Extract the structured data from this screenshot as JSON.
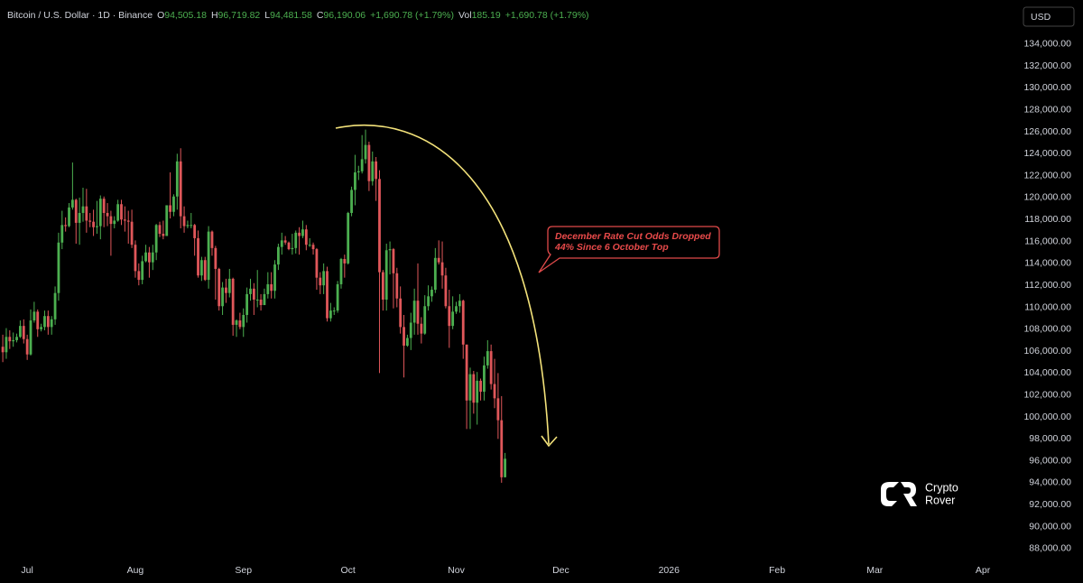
{
  "chart_data": {
    "type": "candlestick",
    "title": "Bitcoin / U.S. Dollar · 1D · Binance",
    "legend_items": [
      {
        "key": "O",
        "value": "94,505.18"
      },
      {
        "key": "H",
        "value": "96,719.82"
      },
      {
        "key": "L",
        "value": "94,481.58"
      },
      {
        "key": "C",
        "value": "96,190.06"
      }
    ],
    "change": "+1,690.78 (+1.79%)",
    "volume_key": "Vol",
    "volume": "185.19",
    "currency": "USD",
    "up_color": "#4caf50",
    "down_color": "#e0575a",
    "open": [
      106400,
      105900,
      107300,
      106900,
      107000,
      107300,
      108300,
      107100,
      105700,
      108800,
      109600,
      108000,
      108200,
      109200,
      108200,
      108900,
      111300,
      115900,
      117500,
      117400,
      119100,
      119800,
      117700,
      118600,
      119200,
      117900,
      117800,
      117300,
      117400,
      119900,
      118600,
      118300,
      117600,
      117900,
      119400,
      118000,
      117900,
      117800,
      115700,
      113300,
      112500,
      114200,
      115000,
      114100,
      115000,
      117500,
      116700,
      116500,
      119300,
      118700,
      120100,
      123300,
      118300,
      117400,
      117500,
      117500,
      116300,
      112900,
      114300,
      112500,
      116900,
      115400,
      113500,
      110100,
      111800,
      111300,
      112600,
      108400,
      108800,
      108200,
      109300,
      111200,
      111700,
      110700,
      110700,
      110200,
      111200,
      112100,
      111500,
      113900,
      115500,
      116100,
      115900,
      115300,
      115400,
      116800,
      116500,
      117100,
      115700,
      115700,
      115300,
      112700,
      112000,
      113300,
      109000,
      109700,
      109700,
      112100,
      114400,
      114000,
      118600,
      120700,
      122300,
      122400,
      123500,
      124800,
      121500,
      123300,
      121700,
      113200,
      110700,
      115200,
      115300,
      113100,
      110800,
      108200,
      106500,
      107200,
      108600,
      110600,
      108500,
      107600,
      110100,
      111000,
      111600,
      114500,
      114100,
      112900,
      110100,
      108300,
      109600,
      110100,
      110600,
      106600,
      101500,
      103900,
      101300,
      103300,
      102300,
      104700,
      106000,
      103000,
      101700,
      99700,
      94505.18
    ],
    "high": [
      107500,
      108100,
      107900,
      107700,
      107600,
      108800,
      108900,
      107500,
      109800,
      110500,
      109800,
      108500,
      109700,
      109700,
      109200,
      111900,
      116800,
      118800,
      118200,
      119500,
      123200,
      119900,
      120000,
      120900,
      120800,
      118600,
      118900,
      119700,
      120200,
      120100,
      119500,
      118800,
      118300,
      119800,
      119800,
      119200,
      118800,
      118900,
      116100,
      114000,
      114700,
      115700,
      115500,
      115700,
      117600,
      117800,
      117900,
      119300,
      122300,
      120300,
      124000,
      124500,
      119200,
      117900,
      118600,
      117600,
      117000,
      114600,
      114600,
      117400,
      117000,
      115600,
      113600,
      112300,
      112600,
      113500,
      112700,
      108900,
      109500,
      109900,
      111800,
      112600,
      112200,
      113400,
      111200,
      111700,
      113200,
      113200,
      114300,
      115800,
      116800,
      116500,
      116000,
      116700,
      117000,
      117300,
      117900,
      117500,
      116300,
      115900,
      115400,
      113200,
      114000,
      113700,
      110400,
      110000,
      112400,
      114500,
      114800,
      118700,
      121000,
      123900,
      122900,
      125700,
      126200,
      125100,
      124200,
      123700,
      122500,
      113400,
      115800,
      116000,
      115400,
      113600,
      111900,
      109300,
      107500,
      109500,
      111700,
      114000,
      109100,
      111100,
      112000,
      111900,
      115400,
      116100,
      116000,
      113600,
      111600,
      111000,
      110500,
      111200,
      110700,
      106600,
      104500,
      104200,
      104100,
      103500,
      105500,
      107000,
      106600,
      105300,
      104000,
      101900,
      96719.82
    ],
    "low": [
      105000,
      105300,
      106200,
      106400,
      106800,
      107200,
      106700,
      105200,
      105600,
      108600,
      107300,
      107800,
      107900,
      107500,
      107500,
      108400,
      110600,
      115300,
      116900,
      117300,
      118900,
      115800,
      115700,
      117800,
      116800,
      117300,
      116500,
      116700,
      116200,
      117300,
      117400,
      114700,
      117200,
      117800,
      117500,
      116900,
      115800,
      115400,
      112700,
      112000,
      112100,
      114100,
      112700,
      113400,
      114300,
      116400,
      116200,
      116500,
      118100,
      118300,
      118900,
      117200,
      116800,
      117200,
      117200,
      114700,
      112700,
      112400,
      112400,
      111700,
      114700,
      110700,
      109700,
      109300,
      110400,
      110900,
      107400,
      107300,
      108000,
      107300,
      108600,
      110600,
      109300,
      110000,
      109700,
      110200,
      110800,
      110800,
      110800,
      113400,
      114800,
      115700,
      115200,
      114800,
      114900,
      114800,
      116300,
      115200,
      115500,
      114800,
      111600,
      111200,
      111200,
      108700,
      108700,
      109300,
      109500,
      111700,
      112700,
      113900,
      118300,
      119300,
      121600,
      122200,
      123100,
      120600,
      121100,
      119700,
      104000,
      109700,
      109700,
      113000,
      109900,
      110000,
      107600,
      103600,
      106400,
      106100,
      107500,
      107500,
      106700,
      107500,
      109700,
      110500,
      111300,
      113900,
      111700,
      109900,
      106300,
      108000,
      109400,
      109500,
      105300,
      98900,
      98900,
      100300,
      99300,
      101500,
      101500,
      104400,
      102500,
      100800,
      98000,
      94000,
      94481.58
    ],
    "close": [
      105900,
      107300,
      106900,
      107000,
      107300,
      108300,
      107100,
      105700,
      108800,
      109600,
      108000,
      108200,
      109200,
      108200,
      108900,
      111300,
      115900,
      117500,
      117400,
      119100,
      119800,
      117700,
      118600,
      119200,
      117900,
      117800,
      117300,
      117400,
      119900,
      118600,
      118300,
      117600,
      117900,
      119400,
      118000,
      117900,
      117800,
      115700,
      113300,
      112500,
      114200,
      115000,
      114100,
      115000,
      117500,
      116700,
      116500,
      119300,
      118700,
      120100,
      123300,
      118300,
      117400,
      117500,
      117500,
      116300,
      112900,
      114300,
      112500,
      116900,
      115400,
      113500,
      110100,
      111800,
      111300,
      112600,
      108400,
      108800,
      108200,
      109300,
      111200,
      111700,
      110700,
      110700,
      110200,
      111200,
      112100,
      111500,
      113900,
      115500,
      116100,
      115900,
      115300,
      115400,
      116800,
      116500,
      117100,
      115700,
      115700,
      115300,
      112700,
      112000,
      113300,
      109000,
      109700,
      109700,
      112100,
      114400,
      114000,
      118600,
      120700,
      122300,
      122400,
      123500,
      124800,
      121500,
      123300,
      121700,
      113200,
      110700,
      115200,
      115300,
      113100,
      110800,
      108200,
      106500,
      107200,
      108600,
      110600,
      108500,
      107600,
      110100,
      111000,
      111600,
      114500,
      114100,
      112900,
      110100,
      108300,
      109600,
      110100,
      110600,
      106600,
      101500,
      103900,
      101300,
      103300,
      102300,
      104700,
      106000,
      103000,
      101700,
      99700,
      94500,
      96190.06
    ],
    "ylim": [
      87000,
      136700
    ],
    "yticks": [
      {
        "value": 88000,
        "label": "88,000.00"
      },
      {
        "value": 90000,
        "label": "90,000.00"
      },
      {
        "value": 92000,
        "label": "92,000.00"
      },
      {
        "value": 94000,
        "label": "94,000.00"
      },
      {
        "value": 96000,
        "label": "96,000.00"
      },
      {
        "value": 98000,
        "label": "98,000.00"
      },
      {
        "value": 100000,
        "label": "100,000.00"
      },
      {
        "value": 102000,
        "label": "102,000.00"
      },
      {
        "value": 104000,
        "label": "104,000.00"
      },
      {
        "value": 106000,
        "label": "106,000.00"
      },
      {
        "value": 108000,
        "label": "108,000.00"
      },
      {
        "value": 110000,
        "label": "110,000.00"
      },
      {
        "value": 112000,
        "label": "112,000.00"
      },
      {
        "value": 114000,
        "label": "114,000.00"
      },
      {
        "value": 116000,
        "label": "116,000.00"
      },
      {
        "value": 118000,
        "label": "118,000.00"
      },
      {
        "value": 120000,
        "label": "120,000.00"
      },
      {
        "value": 122000,
        "label": "122,000.00"
      },
      {
        "value": 124000,
        "label": "124,000.00"
      },
      {
        "value": 126000,
        "label": "126,000.00"
      },
      {
        "value": 128000,
        "label": "128,000.00"
      },
      {
        "value": 130000,
        "label": "130,000.00"
      },
      {
        "value": 132000,
        "label": "132,000.00"
      },
      {
        "value": 134000,
        "label": "134,000.00"
      }
    ],
    "xlim": [
      -0.8,
      289
    ],
    "xticks": [
      {
        "value": 7,
        "label": "Jul"
      },
      {
        "value": 38,
        "label": "Aug"
      },
      {
        "value": 69,
        "label": "Sep"
      },
      {
        "value": 99,
        "label": "Oct"
      },
      {
        "value": 130,
        "label": "Nov"
      },
      {
        "value": 160,
        "label": "Dec"
      },
      {
        "value": 191,
        "label": "2026"
      },
      {
        "value": 222,
        "label": "Feb"
      },
      {
        "value": 250,
        "label": "Mar"
      },
      {
        "value": 281,
        "label": "Apr"
      }
    ],
    "annotation": [
      "December Rate Cut Odds Dropped",
      "44% Since 6 October Top"
    ],
    "watermark": [
      "Crypto",
      "Rover"
    ]
  }
}
